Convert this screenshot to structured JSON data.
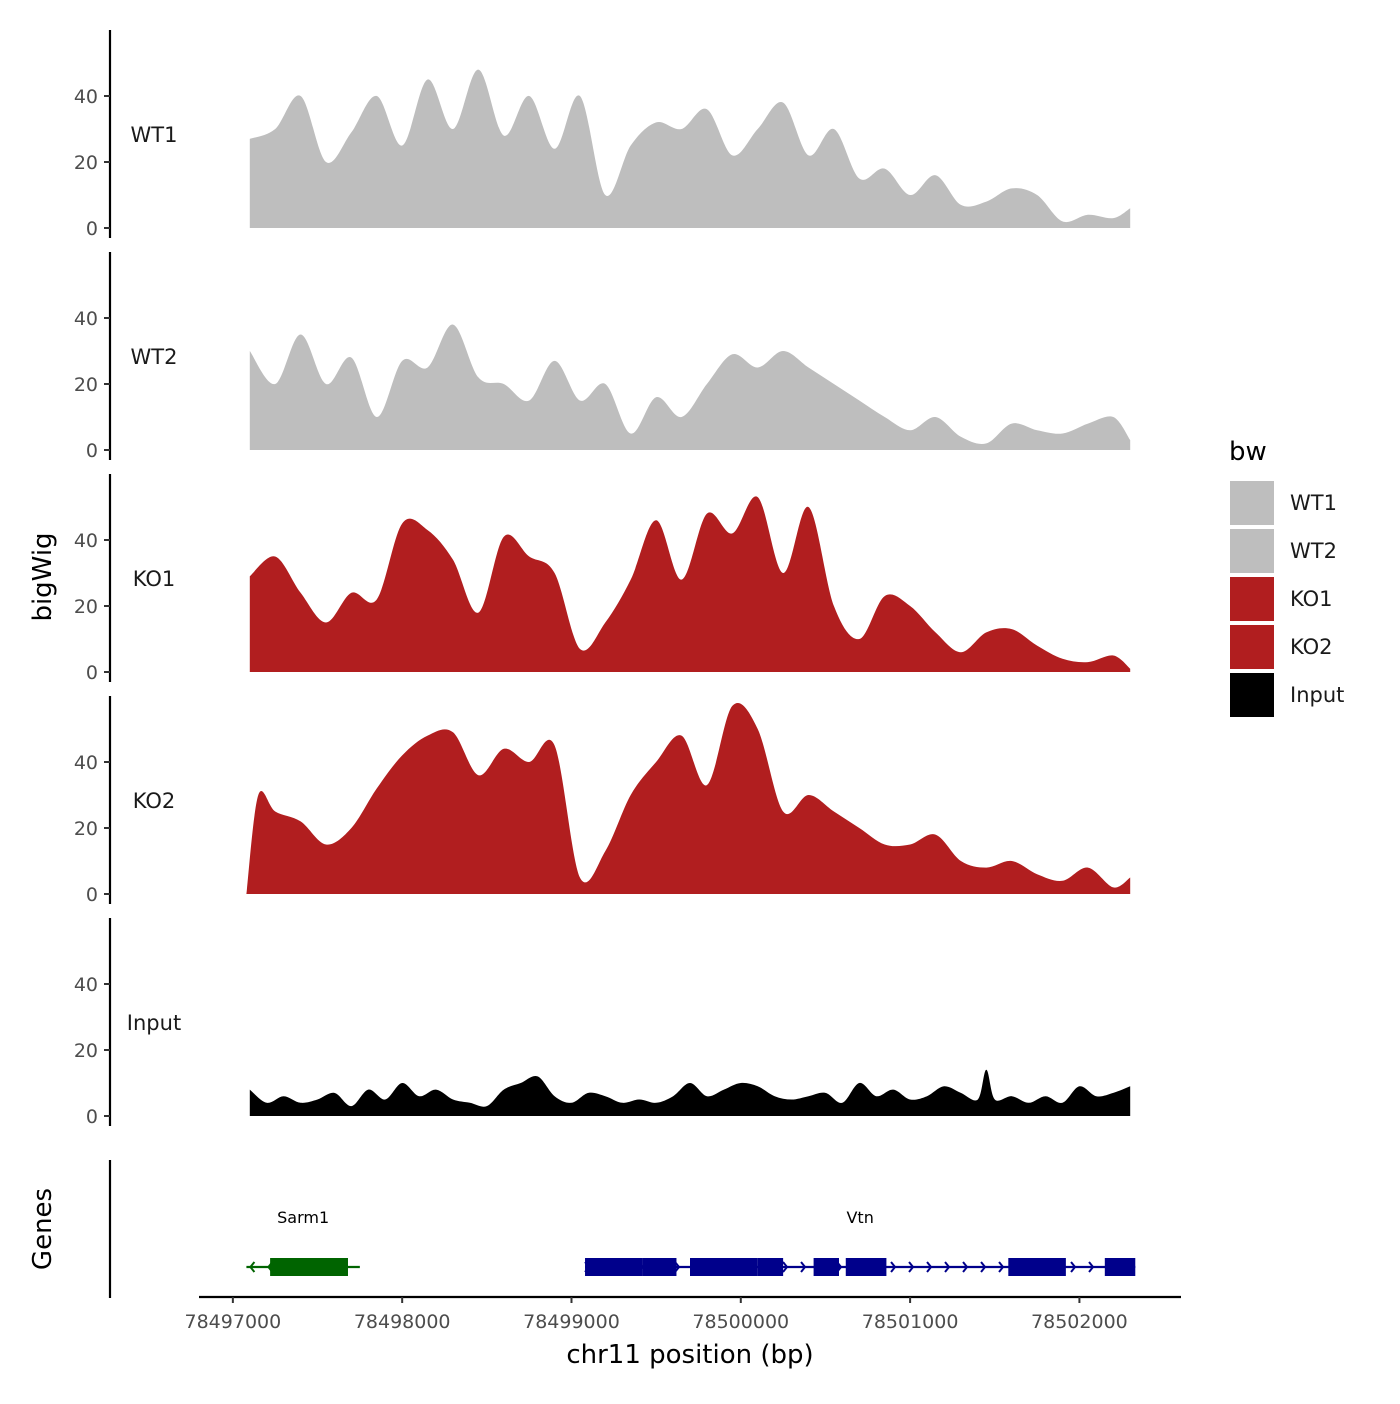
{
  "chart_data": {
    "type": "area",
    "y_axis_title": "bigWig",
    "x_axis_title": "chr11 position (bp)",
    "genes_track_title": "Genes",
    "legend": {
      "title": "bw",
      "entries": [
        {
          "label": "WT1",
          "color": "#bebebe"
        },
        {
          "label": "WT2",
          "color": "#bebebe"
        },
        {
          "label": "KO1",
          "color": "#b11e1f"
        },
        {
          "label": "KO2",
          "color": "#b11e1f"
        },
        {
          "label": "Input",
          "color": "#000000"
        }
      ]
    },
    "xlim": [
      78496800,
      78502600
    ],
    "x_ticks": [
      78497000,
      78498000,
      78499000,
      78500000,
      78501000,
      78502000
    ],
    "x_tick_labels": [
      "78497000",
      "78498000",
      "78499000",
      "78500000",
      "78501000",
      "78502000"
    ],
    "ylim": [
      0,
      60
    ],
    "y_ticks": [
      0,
      20,
      40
    ],
    "y_tick_labels": [
      "0",
      "20",
      "40"
    ],
    "tracks": [
      {
        "name": "WT1",
        "color": "#bebebe",
        "x": [
          78497100,
          78497250,
          78497400,
          78497550,
          78497700,
          78497850,
          78498000,
          78498150,
          78498300,
          78498450,
          78498600,
          78498750,
          78498900,
          78499050,
          78499200,
          78499350,
          78499500,
          78499650,
          78499800,
          78499950,
          78500100,
          78500250,
          78500400,
          78500550,
          78500700,
          78500850,
          78501000,
          78501150,
          78501300,
          78501450,
          78501600,
          78501750,
          78501900,
          78502050,
          78502200,
          78502300
        ],
        "values": [
          27,
          30,
          40,
          20,
          29,
          40,
          25,
          45,
          30,
          48,
          28,
          40,
          24,
          40,
          10,
          25,
          32,
          30,
          36,
          22,
          30,
          38,
          22,
          30,
          15,
          18,
          10,
          16,
          7,
          8,
          12,
          10,
          2,
          4,
          3,
          6
        ]
      },
      {
        "name": "WT2",
        "color": "#bebebe",
        "x": [
          78497100,
          78497250,
          78497400,
          78497550,
          78497700,
          78497850,
          78498000,
          78498150,
          78498300,
          78498450,
          78498600,
          78498750,
          78498900,
          78499050,
          78499200,
          78499350,
          78499500,
          78499650,
          78499800,
          78499950,
          78500100,
          78500250,
          78500400,
          78500550,
          78500700,
          78500850,
          78501000,
          78501150,
          78501300,
          78501450,
          78501600,
          78501750,
          78501900,
          78502050,
          78502200,
          78502300
        ],
        "values": [
          30,
          20,
          35,
          20,
          28,
          10,
          27,
          25,
          38,
          22,
          20,
          15,
          27,
          15,
          20,
          5,
          16,
          10,
          20,
          29,
          25,
          30,
          25,
          20,
          15,
          10,
          6,
          10,
          4,
          2,
          8,
          6,
          5,
          8,
          10,
          3
        ]
      },
      {
        "name": "KO1",
        "color": "#b11e1f",
        "x": [
          78497100,
          78497250,
          78497400,
          78497550,
          78497700,
          78497850,
          78498000,
          78498150,
          78498300,
          78498450,
          78498600,
          78498750,
          78498900,
          78499050,
          78499200,
          78499350,
          78499500,
          78499650,
          78499800,
          78499950,
          78500100,
          78500250,
          78500400,
          78500550,
          78500700,
          78500850,
          78501000,
          78501150,
          78501300,
          78501450,
          78501600,
          78501750,
          78501900,
          78502050,
          78502200,
          78502300
        ],
        "values": [
          29,
          35,
          24,
          15,
          24,
          22,
          45,
          43,
          34,
          18,
          41,
          35,
          30,
          7,
          15,
          28,
          46,
          28,
          48,
          42,
          53,
          30,
          50,
          20,
          10,
          23,
          20,
          12,
          6,
          12,
          13,
          8,
          4,
          3,
          5,
          1
        ]
      },
      {
        "name": "KO2",
        "color": "#b11e1f",
        "x": [
          78497080,
          78497150,
          78497250,
          78497400,
          78497550,
          78497700,
          78497850,
          78498000,
          78498150,
          78498300,
          78498450,
          78498600,
          78498750,
          78498900,
          78499050,
          78499200,
          78499350,
          78499500,
          78499650,
          78499800,
          78499950,
          78500100,
          78500250,
          78500400,
          78500550,
          78500700,
          78500850,
          78501000,
          78501150,
          78501300,
          78501450,
          78501600,
          78501750,
          78501900,
          78502050,
          78502200,
          78502300
        ],
        "values": [
          0,
          30,
          25,
          22,
          15,
          20,
          32,
          42,
          48,
          49,
          36,
          44,
          40,
          45,
          5,
          13,
          30,
          40,
          48,
          33,
          57,
          50,
          25,
          30,
          25,
          20,
          15,
          15,
          18,
          10,
          8,
          10,
          6,
          4,
          8,
          2,
          5
        ]
      },
      {
        "name": "Input",
        "color": "#000000",
        "x": [
          78497100,
          78497200,
          78497300,
          78497400,
          78497500,
          78497600,
          78497700,
          78497800,
          78497900,
          78498000,
          78498100,
          78498200,
          78498300,
          78498400,
          78498500,
          78498600,
          78498700,
          78498800,
          78498900,
          78499000,
          78499100,
          78499200,
          78499300,
          78499400,
          78499500,
          78499600,
          78499700,
          78499800,
          78499900,
          78500000,
          78500100,
          78500200,
          78500300,
          78500400,
          78500500,
          78500600,
          78500700,
          78500800,
          78500900,
          78501000,
          78501100,
          78501200,
          78501300,
          78501400,
          78501450,
          78501500,
          78501600,
          78501700,
          78501800,
          78501900,
          78502000,
          78502100,
          78502200,
          78502300
        ],
        "values": [
          8,
          4,
          6,
          4,
          5,
          7,
          3,
          8,
          5,
          10,
          6,
          8,
          5,
          4,
          3,
          8,
          10,
          12,
          6,
          4,
          7,
          6,
          4,
          5,
          4,
          6,
          10,
          6,
          8,
          10,
          9,
          6,
          5,
          6,
          7,
          4,
          10,
          6,
          8,
          5,
          6,
          9,
          7,
          5,
          14,
          5,
          6,
          4,
          6,
          4,
          9,
          6,
          7,
          9
        ]
      }
    ],
    "genes": [
      {
        "name": "Sarm1",
        "strand": "-",
        "color": "#006400",
        "start": 78497080,
        "end": 78497750,
        "exons": [
          [
            78497220,
            78497680
          ]
        ]
      },
      {
        "name": "Vtn",
        "strand": "+",
        "color": "#00008b",
        "start": 78499080,
        "end": 78502330,
        "exons": [
          [
            78499080,
            78499420
          ],
          [
            78499420,
            78499620
          ],
          [
            78499700,
            78500100
          ],
          [
            78500100,
            78500250
          ],
          [
            78500430,
            78500580
          ],
          [
            78500620,
            78500860
          ],
          [
            78501580,
            78501920
          ],
          [
            78502150,
            78502330
          ]
        ]
      }
    ]
  }
}
